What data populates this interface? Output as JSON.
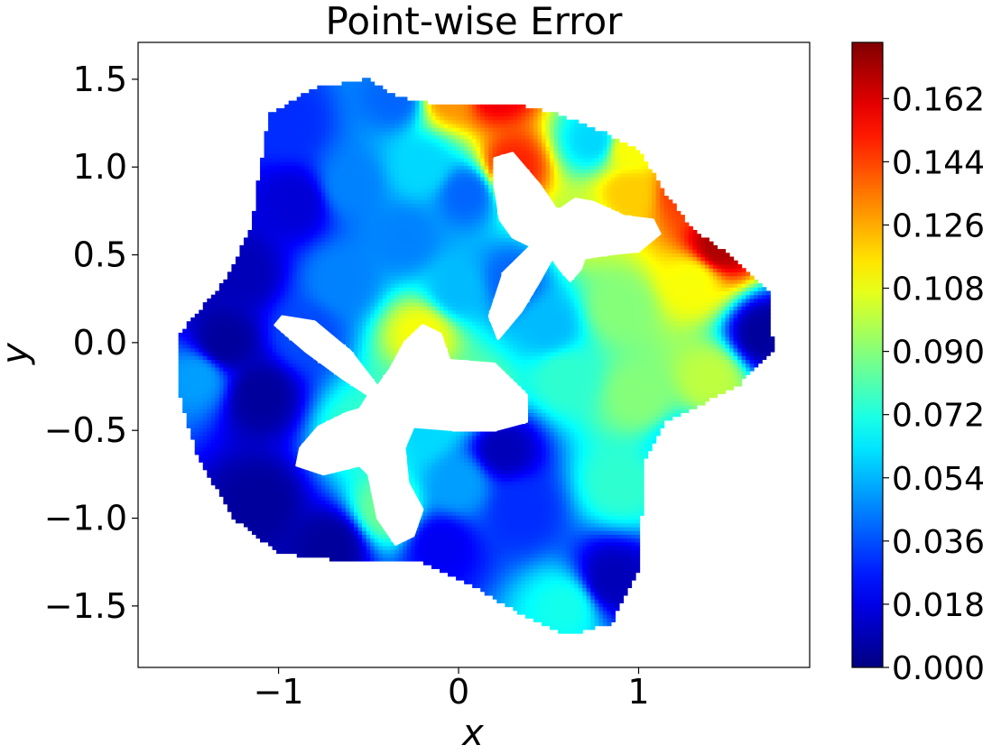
{
  "chart_data": {
    "type": "heatmap",
    "title": "Point-wise Error",
    "xlabel": "x",
    "ylabel": "y",
    "xlim": [
      -1.78,
      1.95
    ],
    "ylim": [
      -1.85,
      1.71
    ],
    "x_ticks": [
      {
        "value": -1,
        "label": "−1"
      },
      {
        "value": 0,
        "label": "0"
      },
      {
        "value": 1,
        "label": "1"
      }
    ],
    "y_ticks": [
      {
        "value": 1.5,
        "label": "1.5"
      },
      {
        "value": 1.0,
        "label": "1.0"
      },
      {
        "value": 0.5,
        "label": "0.5"
      },
      {
        "value": 0.0,
        "label": "0.0"
      },
      {
        "value": -0.5,
        "label": "−0.5"
      },
      {
        "value": -1.0,
        "label": "−1.0"
      },
      {
        "value": -1.5,
        "label": "−1.5"
      }
    ],
    "colorbar": {
      "colormap": "jet",
      "range": [
        0.0,
        0.178
      ],
      "ticks": [
        {
          "value": 0.0,
          "label": "0.000"
        },
        {
          "value": 0.018,
          "label": "0.018"
        },
        {
          "value": 0.036,
          "label": "0.036"
        },
        {
          "value": 0.054,
          "label": "0.054"
        },
        {
          "value": 0.072,
          "label": "0.072"
        },
        {
          "value": 0.09,
          "label": "0.090"
        },
        {
          "value": 0.108,
          "label": "0.108"
        },
        {
          "value": 0.126,
          "label": "0.126"
        },
        {
          "value": 0.144,
          "label": "0.144"
        },
        {
          "value": 0.162,
          "label": "0.162"
        }
      ]
    },
    "grid": false,
    "domain": {
      "outer_boundary": [
        [
          -1.0,
          -1.2
        ],
        [
          -0.6,
          -1.25
        ],
        [
          -0.2,
          -1.25
        ],
        [
          0.1,
          -1.4
        ],
        [
          0.35,
          -1.55
        ],
        [
          0.6,
          -1.67
        ],
        [
          0.85,
          -1.6
        ],
        [
          1.0,
          -1.3
        ],
        [
          1.02,
          -0.95
        ],
        [
          1.02,
          -0.7
        ],
        [
          1.15,
          -0.45
        ],
        [
          1.55,
          -0.25
        ],
        [
          1.75,
          -0.05
        ],
        [
          1.72,
          0.3
        ],
        [
          1.5,
          0.5
        ],
        [
          1.3,
          0.65
        ],
        [
          1.15,
          0.85
        ],
        [
          1.0,
          1.1
        ],
        [
          0.8,
          1.2
        ],
        [
          0.55,
          1.3
        ],
        [
          0.35,
          1.35
        ],
        [
          0.1,
          1.35
        ],
        [
          -0.1,
          1.35
        ],
        [
          -0.35,
          1.4
        ],
        [
          -0.5,
          1.5
        ],
        [
          -0.8,
          1.45
        ],
        [
          -1.05,
          1.3
        ],
        [
          -1.1,
          1.0
        ],
        [
          -1.15,
          0.65
        ],
        [
          -1.3,
          0.35
        ],
        [
          -1.55,
          0.05
        ],
        [
          -1.55,
          -0.3
        ],
        [
          -1.45,
          -0.65
        ],
        [
          -1.25,
          -1.0
        ]
      ],
      "holes": [
        [
          [
            -0.25,
            -1.1
          ],
          [
            -0.35,
            -1.15
          ],
          [
            -0.45,
            -1.0
          ],
          [
            -0.5,
            -0.75
          ],
          [
            -0.55,
            -0.7
          ],
          [
            -0.75,
            -0.75
          ],
          [
            -0.9,
            -0.7
          ],
          [
            -0.88,
            -0.6
          ],
          [
            -0.78,
            -0.48
          ],
          [
            -0.62,
            -0.4
          ],
          [
            -0.55,
            -0.38
          ],
          [
            -0.5,
            -0.3
          ],
          [
            -0.65,
            -0.2
          ],
          [
            -0.85,
            -0.05
          ],
          [
            -1.02,
            0.1
          ],
          [
            -0.98,
            0.15
          ],
          [
            -0.8,
            0.12
          ],
          [
            -0.6,
            -0.05
          ],
          [
            -0.45,
            -0.25
          ],
          [
            -0.38,
            -0.15
          ],
          [
            -0.3,
            0.0
          ],
          [
            -0.2,
            0.1
          ],
          [
            -0.1,
            0.05
          ],
          [
            -0.05,
            -0.1
          ],
          [
            0.2,
            -0.12
          ],
          [
            0.38,
            -0.3
          ],
          [
            0.38,
            -0.45
          ],
          [
            0.2,
            -0.5
          ],
          [
            0.0,
            -0.5
          ],
          [
            -0.25,
            -0.48
          ],
          [
            -0.3,
            -0.6
          ],
          [
            -0.28,
            -0.8
          ],
          [
            -0.2,
            -0.95
          ]
        ],
        [
          [
            0.22,
            0.02
          ],
          [
            0.17,
            0.15
          ],
          [
            0.25,
            0.4
          ],
          [
            0.4,
            0.55
          ],
          [
            0.3,
            0.6
          ],
          [
            0.23,
            0.7
          ],
          [
            0.2,
            0.9
          ],
          [
            0.2,
            1.05
          ],
          [
            0.3,
            1.08
          ],
          [
            0.45,
            0.9
          ],
          [
            0.55,
            0.75
          ],
          [
            0.62,
            0.8
          ],
          [
            0.65,
            0.82
          ],
          [
            0.75,
            0.8
          ],
          [
            0.92,
            0.72
          ],
          [
            1.08,
            0.7
          ],
          [
            1.12,
            0.62
          ],
          [
            1.0,
            0.52
          ],
          [
            0.82,
            0.5
          ],
          [
            0.7,
            0.48
          ],
          [
            0.68,
            0.42
          ],
          [
            0.62,
            0.35
          ],
          [
            0.56,
            0.42
          ],
          [
            0.52,
            0.48
          ],
          [
            0.45,
            0.35
          ],
          [
            0.35,
            0.18
          ]
        ]
      ]
    },
    "error_field": {
      "description": "interpolated point-wise error sampled at control locations (x, y, error)",
      "samples": [
        [
          1.45,
          0.55,
          0.17
        ],
        [
          1.25,
          0.85,
          0.145
        ],
        [
          0.95,
          1.1,
          0.11
        ],
        [
          0.2,
          1.45,
          0.16
        ],
        [
          -0.05,
          1.42,
          0.13
        ],
        [
          -0.35,
          1.4,
          0.04
        ],
        [
          -0.95,
          1.25,
          0.03
        ],
        [
          -0.9,
          0.8,
          0.015
        ],
        [
          -1.2,
          0.4,
          0.01
        ],
        [
          -1.45,
          -0.2,
          0.05
        ],
        [
          -1.1,
          -0.3,
          0.005
        ],
        [
          -1.1,
          -0.9,
          0.005
        ],
        [
          -0.7,
          -1.15,
          0.005
        ],
        [
          -0.1,
          -1.15,
          0.02
        ],
        [
          0.6,
          -1.5,
          0.07
        ],
        [
          0.85,
          -1.35,
          0.01
        ],
        [
          0.9,
          -0.8,
          0.075
        ],
        [
          1.4,
          -0.2,
          0.1
        ],
        [
          1.7,
          0.05,
          0.005
        ],
        [
          1.3,
          0.35,
          0.11
        ],
        [
          0.9,
          0.2,
          0.09
        ],
        [
          0.6,
          -0.2,
          0.075
        ],
        [
          0.0,
          0.3,
          0.055
        ],
        [
          -0.3,
          0.6,
          0.045
        ],
        [
          -0.6,
          0.9,
          0.045
        ],
        [
          -0.2,
          1.0,
          0.06
        ],
        [
          0.05,
          0.85,
          0.04
        ],
        [
          0.75,
          1.15,
          0.06
        ],
        [
          0.3,
          1.0,
          0.15
        ],
        [
          0.7,
          0.65,
          0.1
        ],
        [
          0.3,
          0.35,
          0.04
        ],
        [
          -0.85,
          0.05,
          0.035
        ],
        [
          -0.55,
          -0.5,
          0.075
        ],
        [
          -0.4,
          -0.95,
          0.085
        ],
        [
          -0.2,
          0.05,
          0.11
        ],
        [
          0.1,
          -0.3,
          0.085
        ],
        [
          0.25,
          -0.6,
          0.01
        ],
        [
          0.35,
          -0.95,
          0.03
        ],
        [
          -0.3,
          -0.35,
          0.08
        ],
        [
          0.5,
          0.1,
          0.055
        ],
        [
          1.0,
          -0.3,
          0.09
        ],
        [
          1.25,
          -0.6,
          0.06
        ],
        [
          -1.3,
          0.0,
          0.005
        ],
        [
          -0.65,
          0.35,
          0.045
        ],
        [
          0.0,
          -0.8,
          0.05
        ],
        [
          0.95,
          0.85,
          0.12
        ],
        [
          -0.2,
          -0.5,
          0.06
        ]
      ]
    }
  }
}
